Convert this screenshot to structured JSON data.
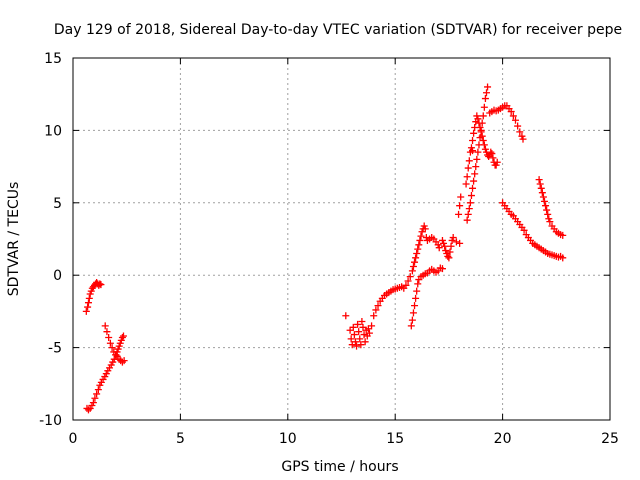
{
  "chart_data": {
    "type": "scatter",
    "title": "Day 129 of 2018, Sidereal Day-to-day VTEC variation (SDTVAR) for receiver pepe",
    "xlabel": "GPS time / hours",
    "ylabel": "SDTVAR / TECUs",
    "xlim": [
      0,
      25
    ],
    "ylim": [
      -10,
      15
    ],
    "xticks": [
      0,
      5,
      10,
      15,
      20,
      25
    ],
    "yticks": [
      -10,
      -5,
      0,
      5,
      10,
      15
    ],
    "grid": true,
    "marker": "+",
    "series": [
      {
        "color": "#ff0000",
        "points": [
          [
            0.62,
            -2.5
          ],
          [
            0.68,
            -2.2
          ],
          [
            0.72,
            -1.9
          ],
          [
            0.76,
            -1.6
          ],
          [
            0.8,
            -1.3
          ],
          [
            0.85,
            -1.1
          ],
          [
            0.9,
            -0.9
          ],
          [
            0.95,
            -0.8
          ],
          [
            1.0,
            -0.7
          ],
          [
            1.05,
            -0.6
          ],
          [
            1.1,
            -0.5
          ],
          [
            1.15,
            -0.6
          ],
          [
            1.2,
            -0.7
          ],
          [
            1.25,
            -0.6
          ],
          [
            1.3,
            -0.65
          ],
          [
            0.65,
            -9.2
          ],
          [
            0.72,
            -9.3
          ],
          [
            0.8,
            -9.2
          ],
          [
            0.88,
            -9.0
          ],
          [
            0.95,
            -8.8
          ],
          [
            1.02,
            -8.5
          ],
          [
            1.1,
            -8.2
          ],
          [
            1.18,
            -7.9
          ],
          [
            1.25,
            -7.6
          ],
          [
            1.32,
            -7.4
          ],
          [
            1.4,
            -7.2
          ],
          [
            1.48,
            -7.0
          ],
          [
            1.55,
            -6.8
          ],
          [
            1.62,
            -6.6
          ],
          [
            1.7,
            -6.4
          ],
          [
            1.78,
            -6.2
          ],
          [
            1.85,
            -6.0
          ],
          [
            1.92,
            -5.8
          ],
          [
            2.0,
            -5.5
          ],
          [
            2.05,
            -5.3
          ],
          [
            2.1,
            -5.1
          ],
          [
            2.15,
            -4.9
          ],
          [
            2.2,
            -4.7
          ],
          [
            2.25,
            -4.5
          ],
          [
            2.3,
            -4.3
          ],
          [
            2.35,
            -4.2
          ],
          [
            1.5,
            -3.5
          ],
          [
            1.58,
            -3.9
          ],
          [
            1.66,
            -4.3
          ],
          [
            1.74,
            -4.7
          ],
          [
            1.82,
            -5.0
          ],
          [
            1.9,
            -5.3
          ],
          [
            1.98,
            -5.5
          ],
          [
            2.06,
            -5.6
          ],
          [
            2.14,
            -5.8
          ],
          [
            2.22,
            -5.9
          ],
          [
            2.3,
            -6.0
          ],
          [
            2.38,
            -5.9
          ],
          [
            12.7,
            -2.8
          ],
          [
            12.9,
            -3.8
          ],
          [
            12.95,
            -4.4
          ],
          [
            13.0,
            -4.8
          ],
          [
            13.05,
            -3.6
          ],
          [
            13.1,
            -4.1
          ],
          [
            13.15,
            -4.6
          ],
          [
            13.2,
            -4.9
          ],
          [
            13.25,
            -3.4
          ],
          [
            13.3,
            -3.9
          ],
          [
            13.35,
            -4.4
          ],
          [
            13.4,
            -4.8
          ],
          [
            13.45,
            -3.2
          ],
          [
            13.5,
            -3.6
          ],
          [
            13.55,
            -4.1
          ],
          [
            13.6,
            -4.6
          ],
          [
            13.65,
            -3.8
          ],
          [
            13.7,
            -4.2
          ],
          [
            13.75,
            -3.7
          ],
          [
            13.8,
            -4.0
          ],
          [
            13.9,
            -3.5
          ],
          [
            14.0,
            -2.8
          ],
          [
            14.1,
            -2.4
          ],
          [
            14.2,
            -2.1
          ],
          [
            14.3,
            -1.8
          ],
          [
            14.4,
            -1.6
          ],
          [
            14.5,
            -1.4
          ],
          [
            14.6,
            -1.3
          ],
          [
            14.7,
            -1.2
          ],
          [
            14.8,
            -1.1
          ],
          [
            14.9,
            -1.0
          ],
          [
            15.0,
            -0.95
          ],
          [
            15.1,
            -0.9
          ],
          [
            15.2,
            -0.85
          ],
          [
            15.3,
            -0.8
          ],
          [
            15.4,
            -0.9
          ],
          [
            15.5,
            -0.7
          ],
          [
            15.6,
            -0.4
          ],
          [
            15.7,
            -0.1
          ],
          [
            15.8,
            0.3
          ],
          [
            15.85,
            0.6
          ],
          [
            15.9,
            0.9
          ],
          [
            15.95,
            1.2
          ],
          [
            16.0,
            1.5
          ],
          [
            16.05,
            1.8
          ],
          [
            16.1,
            2.1
          ],
          [
            16.15,
            2.4
          ],
          [
            16.2,
            2.7
          ],
          [
            16.25,
            3.0
          ],
          [
            16.3,
            3.2
          ],
          [
            16.35,
            3.4
          ],
          [
            16.4,
            3.2
          ],
          [
            16.45,
            2.6
          ],
          [
            16.5,
            2.4
          ],
          [
            16.6,
            2.5
          ],
          [
            16.7,
            2.6
          ],
          [
            16.8,
            2.5
          ],
          [
            16.9,
            2.3
          ],
          [
            17.0,
            2.1
          ],
          [
            17.05,
            1.9
          ],
          [
            15.75,
            -3.5
          ],
          [
            15.8,
            -3.1
          ],
          [
            15.85,
            -2.6
          ],
          [
            15.9,
            -2.1
          ],
          [
            15.95,
            -1.6
          ],
          [
            16.0,
            -1.1
          ],
          [
            16.05,
            -0.6
          ],
          [
            16.1,
            -0.3
          ],
          [
            16.2,
            -0.1
          ],
          [
            16.3,
            0.0
          ],
          [
            16.4,
            0.1
          ],
          [
            16.5,
            0.15
          ],
          [
            16.6,
            0.3
          ],
          [
            16.7,
            0.4
          ],
          [
            16.8,
            0.3
          ],
          [
            16.9,
            0.2
          ],
          [
            17.0,
            0.3
          ],
          [
            17.1,
            0.5
          ],
          [
            17.2,
            0.45
          ],
          [
            17.2,
            2.4
          ],
          [
            17.25,
            2.2
          ],
          [
            17.3,
            2.0
          ],
          [
            17.35,
            1.7
          ],
          [
            17.4,
            1.5
          ],
          [
            17.45,
            1.3
          ],
          [
            17.5,
            1.2
          ],
          [
            17.55,
            1.6
          ],
          [
            17.6,
            2.0
          ],
          [
            17.65,
            2.4
          ],
          [
            17.7,
            2.6
          ],
          [
            17.85,
            2.3
          ],
          [
            18.0,
            2.2
          ],
          [
            17.95,
            4.2
          ],
          [
            18.0,
            4.8
          ],
          [
            18.05,
            5.4
          ],
          [
            18.3,
            6.3
          ],
          [
            18.35,
            6.8
          ],
          [
            18.4,
            7.4
          ],
          [
            18.45,
            7.9
          ],
          [
            18.5,
            8.5
          ],
          [
            18.55,
            8.8
          ],
          [
            18.6,
            8.6
          ],
          [
            18.35,
            3.8
          ],
          [
            18.4,
            4.2
          ],
          [
            18.45,
            4.6
          ],
          [
            18.5,
            5.0
          ],
          [
            18.55,
            5.5
          ],
          [
            18.6,
            6.0
          ],
          [
            18.65,
            6.5
          ],
          [
            18.7,
            7.0
          ],
          [
            18.75,
            7.5
          ],
          [
            18.8,
            8.0
          ],
          [
            18.85,
            8.5
          ],
          [
            18.9,
            9.0
          ],
          [
            18.95,
            9.5
          ],
          [
            19.0,
            10.0
          ],
          [
            19.05,
            10.5
          ],
          [
            19.1,
            11.0
          ],
          [
            19.15,
            11.6
          ],
          [
            19.2,
            12.2
          ],
          [
            19.25,
            12.6
          ],
          [
            19.3,
            13.0
          ],
          [
            18.6,
            9.3
          ],
          [
            18.65,
            9.8
          ],
          [
            18.7,
            10.2
          ],
          [
            18.75,
            10.6
          ],
          [
            18.8,
            11.0
          ],
          [
            18.85,
            10.8
          ],
          [
            18.9,
            10.5
          ],
          [
            18.95,
            10.2
          ],
          [
            19.0,
            9.9
          ],
          [
            19.05,
            9.6
          ],
          [
            19.1,
            9.3
          ],
          [
            19.15,
            9.0
          ],
          [
            19.2,
            8.7
          ],
          [
            19.25,
            8.5
          ],
          [
            19.3,
            8.3
          ],
          [
            19.35,
            8.2
          ],
          [
            19.4,
            8.3
          ],
          [
            19.45,
            8.5
          ],
          [
            19.5,
            8.4
          ],
          [
            19.55,
            8.1
          ],
          [
            19.6,
            7.8
          ],
          [
            19.65,
            7.6
          ],
          [
            19.7,
            7.6
          ],
          [
            19.75,
            7.8
          ],
          [
            19.4,
            11.2
          ],
          [
            19.5,
            11.3
          ],
          [
            19.6,
            11.4
          ],
          [
            19.7,
            11.35
          ],
          [
            19.8,
            11.4
          ],
          [
            19.9,
            11.5
          ],
          [
            20.0,
            11.6
          ],
          [
            20.1,
            11.7
          ],
          [
            20.2,
            11.7
          ],
          [
            20.3,
            11.5
          ],
          [
            20.4,
            11.3
          ],
          [
            20.5,
            11.0
          ],
          [
            20.6,
            10.7
          ],
          [
            20.7,
            10.3
          ],
          [
            20.8,
            9.9
          ],
          [
            20.9,
            9.6
          ],
          [
            20.95,
            9.4
          ],
          [
            20.0,
            5.0
          ],
          [
            20.1,
            4.8
          ],
          [
            20.2,
            4.6
          ],
          [
            20.3,
            4.4
          ],
          [
            20.4,
            4.2
          ],
          [
            20.5,
            4.1
          ],
          [
            20.6,
            3.9
          ],
          [
            20.7,
            3.7
          ],
          [
            20.8,
            3.5
          ],
          [
            20.9,
            3.3
          ],
          [
            21.0,
            3.1
          ],
          [
            21.1,
            2.8
          ],
          [
            21.2,
            2.6
          ],
          [
            21.3,
            2.4
          ],
          [
            21.4,
            2.2
          ],
          [
            21.5,
            2.1
          ],
          [
            21.6,
            2.0
          ],
          [
            21.7,
            1.9
          ],
          [
            21.8,
            1.8
          ],
          [
            21.9,
            1.7
          ],
          [
            22.0,
            1.6
          ],
          [
            22.1,
            1.5
          ],
          [
            22.2,
            1.45
          ],
          [
            22.3,
            1.4
          ],
          [
            22.4,
            1.35
          ],
          [
            22.5,
            1.3
          ],
          [
            22.6,
            1.25
          ],
          [
            22.7,
            1.3
          ],
          [
            22.8,
            1.2
          ],
          [
            21.7,
            6.6
          ],
          [
            21.75,
            6.3
          ],
          [
            21.8,
            6.0
          ],
          [
            21.85,
            5.7
          ],
          [
            21.9,
            5.4
          ],
          [
            21.95,
            5.1
          ],
          [
            22.0,
            4.8
          ],
          [
            22.05,
            4.5
          ],
          [
            22.1,
            4.2
          ],
          [
            22.15,
            3.9
          ],
          [
            22.2,
            3.7
          ],
          [
            22.3,
            3.4
          ],
          [
            22.4,
            3.2
          ],
          [
            22.5,
            3.0
          ],
          [
            22.6,
            2.9
          ],
          [
            22.7,
            2.8
          ],
          [
            22.8,
            2.75
          ]
        ]
      }
    ]
  }
}
